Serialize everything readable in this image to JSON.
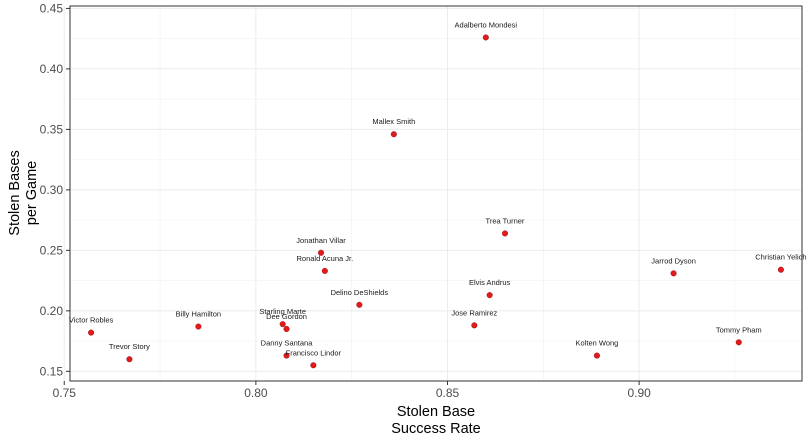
{
  "chart_data": {
    "type": "scatter",
    "xlabel": [
      "Stolen Base",
      "Success Rate"
    ],
    "ylabel": [
      "Stolen Bases",
      "per Game"
    ],
    "xlim": [
      0.7515,
      0.9425
    ],
    "ylim": [
      0.142,
      0.452
    ],
    "x_ticks": [
      0.75,
      0.8,
      0.85,
      0.9
    ],
    "x_tick_labels": [
      "0.75",
      "0.80",
      "0.85",
      "0.90"
    ],
    "y_ticks": [
      0.15,
      0.2,
      0.25,
      0.3,
      0.35,
      0.4,
      0.45
    ],
    "y_tick_labels": [
      "0.15",
      "0.20",
      "0.25",
      "0.30",
      "0.35",
      "0.40",
      "0.45"
    ],
    "grid": true,
    "point_color": "#e31a1c",
    "points": [
      {
        "label": "Adalberto Mondesi",
        "x": 0.86,
        "y": 0.426
      },
      {
        "label": "Mallex Smith",
        "x": 0.836,
        "y": 0.346
      },
      {
        "label": "Trea Turner",
        "x": 0.865,
        "y": 0.264
      },
      {
        "label": "Jonathan Villar",
        "x": 0.817,
        "y": 0.248
      },
      {
        "label": "Ronald Acuna Jr.",
        "x": 0.818,
        "y": 0.233
      },
      {
        "label": "Christian Yelich",
        "x": 0.937,
        "y": 0.234
      },
      {
        "label": "Jarrod Dyson",
        "x": 0.909,
        "y": 0.231
      },
      {
        "label": "Elvis Andrus",
        "x": 0.861,
        "y": 0.213
      },
      {
        "label": "Delino DeShields",
        "x": 0.827,
        "y": 0.205
      },
      {
        "label": "Starling Marte",
        "x": 0.807,
        "y": 0.189
      },
      {
        "label": "Dee Gordon",
        "x": 0.808,
        "y": 0.185
      },
      {
        "label": "Billy Hamilton",
        "x": 0.785,
        "y": 0.187
      },
      {
        "label": "Jose Ramirez",
        "x": 0.857,
        "y": 0.188
      },
      {
        "label": "Victor Robles",
        "x": 0.757,
        "y": 0.182
      },
      {
        "label": "Tommy Pham",
        "x": 0.926,
        "y": 0.174
      },
      {
        "label": "Danny Santana",
        "x": 0.808,
        "y": 0.163
      },
      {
        "label": "Kolten Wong",
        "x": 0.889,
        "y": 0.163
      },
      {
        "label": "Trevor Story",
        "x": 0.767,
        "y": 0.16
      },
      {
        "label": "Francisco Lindor",
        "x": 0.815,
        "y": 0.155
      }
    ]
  }
}
